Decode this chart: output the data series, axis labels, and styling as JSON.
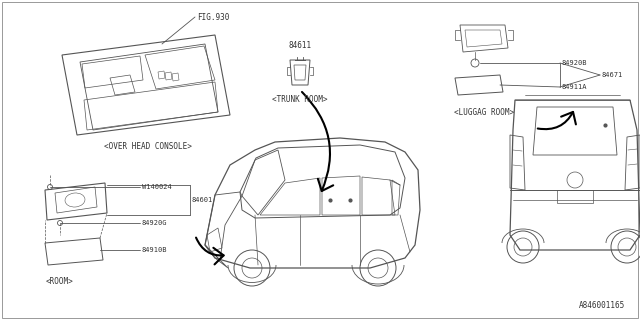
{
  "bg_color": "#ffffff",
  "fig_ref": "FIG.930",
  "part_number_bottom": "A846001165",
  "labels": {
    "over_head_console": "<OVER HEAD CONSOLE>",
    "trunk_room": "<TRUNK ROOM>",
    "luggag_room": "<LUGGAG ROOM>",
    "room": "<ROOM>"
  },
  "part_numbers": {
    "w140024": "W140024",
    "84601": "84601",
    "84920g": "84920G",
    "84910b": "84910B",
    "84611": "84611",
    "84920b": "84920B",
    "84671": "84671",
    "84911a": "84911A"
  },
  "lc": "#555555",
  "tc": "#333333",
  "font_size_label": 5.5,
  "font_size_part": 5.0
}
